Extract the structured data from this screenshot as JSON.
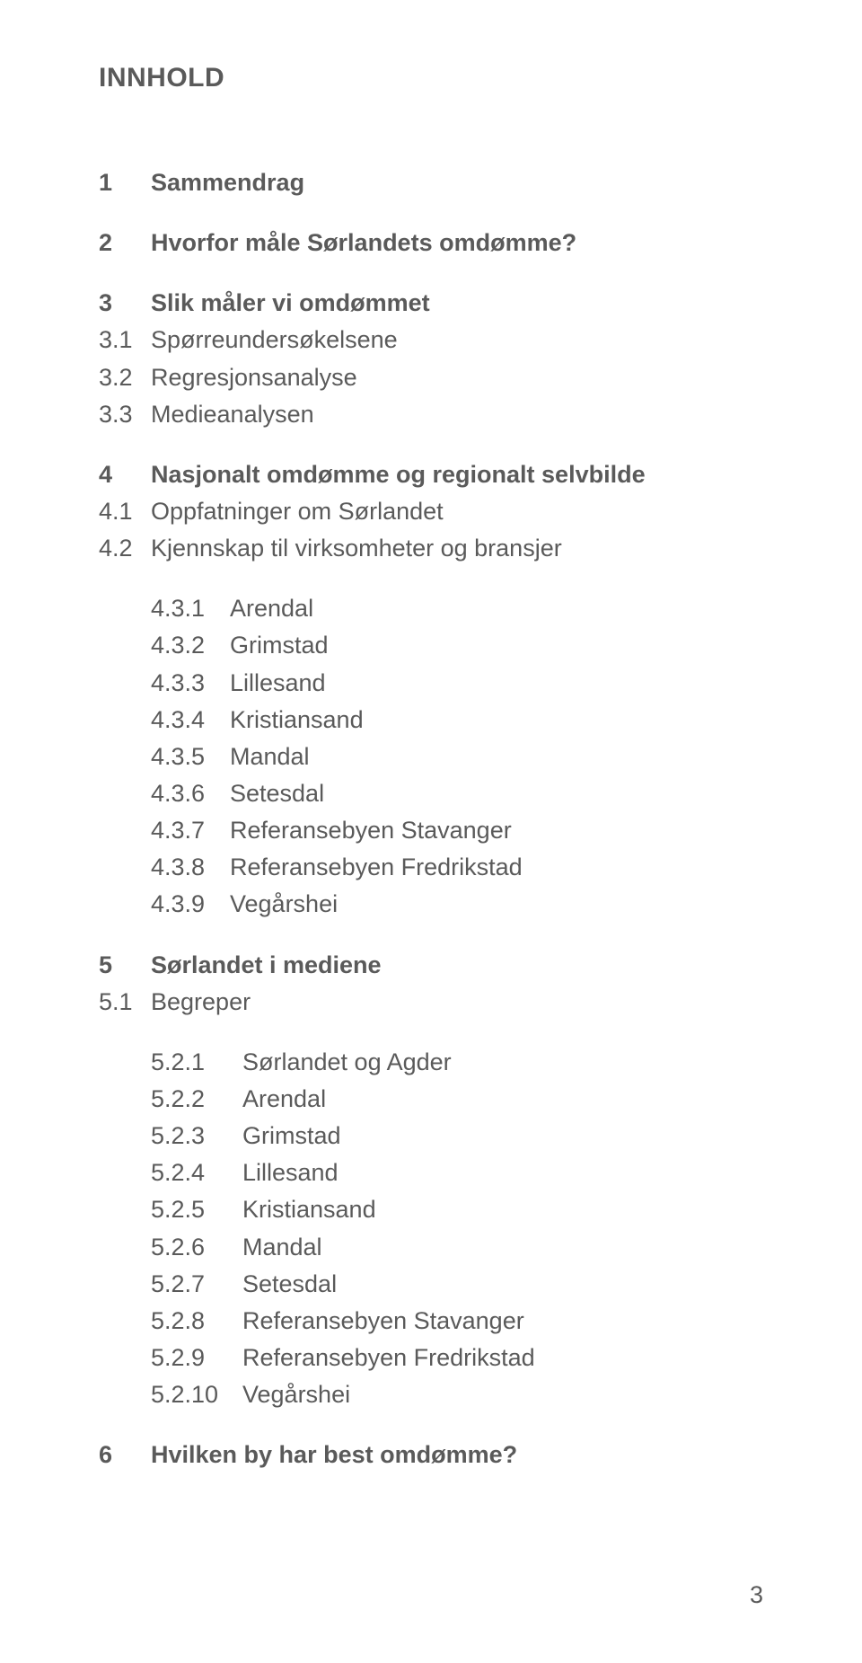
{
  "title": "INNHOLD",
  "page_number": "3",
  "sections": {
    "s1": {
      "num": "1",
      "label": "Sammendrag"
    },
    "s2": {
      "num": "2",
      "label": "Hvorfor måle Sørlandets omdømme?"
    },
    "s3": {
      "num": "3",
      "label": "Slik måler vi omdømmet"
    },
    "s3_1": {
      "num": "3.1",
      "label": "Spørreundersøkelsene"
    },
    "s3_2": {
      "num": "3.2",
      "label": "Regresjonsanalyse"
    },
    "s3_3": {
      "num": "3.3",
      "label": "Medieanalysen"
    },
    "s4": {
      "num": "4",
      "label": "Nasjonalt omdømme og regionalt selvbilde"
    },
    "s4_1": {
      "num": "4.1",
      "label": "Oppfatninger om Sørlandet"
    },
    "s4_2": {
      "num": "4.2",
      "label": "Kjennskap til virksomheter og bransjer"
    },
    "s4_3_1": {
      "num": "4.3.1",
      "label": "Arendal"
    },
    "s4_3_2": {
      "num": "4.3.2",
      "label": "Grimstad"
    },
    "s4_3_3": {
      "num": "4.3.3",
      "label": "Lillesand"
    },
    "s4_3_4": {
      "num": "4.3.4",
      "label": "Kristiansand"
    },
    "s4_3_5": {
      "num": "4.3.5",
      "label": "Mandal"
    },
    "s4_3_6": {
      "num": "4.3.6",
      "label": "Setesdal"
    },
    "s4_3_7": {
      "num": "4.3.7",
      "label": "Referansebyen Stavanger"
    },
    "s4_3_8": {
      "num": "4.3.8",
      "label": "Referansebyen Fredrikstad"
    },
    "s4_3_9": {
      "num": "4.3.9",
      "label": "Vegårshei"
    },
    "s5": {
      "num": "5",
      "label": "Sørlandet i mediene"
    },
    "s5_1": {
      "num": "5.1",
      "label": "Begreper"
    },
    "s5_2_1": {
      "num": "5.2.1",
      "label": "Sørlandet og Agder"
    },
    "s5_2_2": {
      "num": "5.2.2",
      "label": "Arendal"
    },
    "s5_2_3": {
      "num": "5.2.3",
      "label": "Grimstad"
    },
    "s5_2_4": {
      "num": "5.2.4",
      "label": "Lillesand"
    },
    "s5_2_5": {
      "num": "5.2.5",
      "label": "Kristiansand"
    },
    "s5_2_6": {
      "num": "5.2.6",
      "label": "Mandal"
    },
    "s5_2_7": {
      "num": "5.2.7",
      "label": "Setesdal"
    },
    "s5_2_8": {
      "num": "5.2.8",
      "label": "Referansebyen Stavanger"
    },
    "s5_2_9": {
      "num": "5.2.9",
      "label": "Referansebyen Fredrikstad"
    },
    "s5_2_10": {
      "num": "5.2.10",
      "label": "Vegårshei"
    },
    "s6": {
      "num": "6",
      "label": "Hvilken by har best omdømme?"
    }
  }
}
